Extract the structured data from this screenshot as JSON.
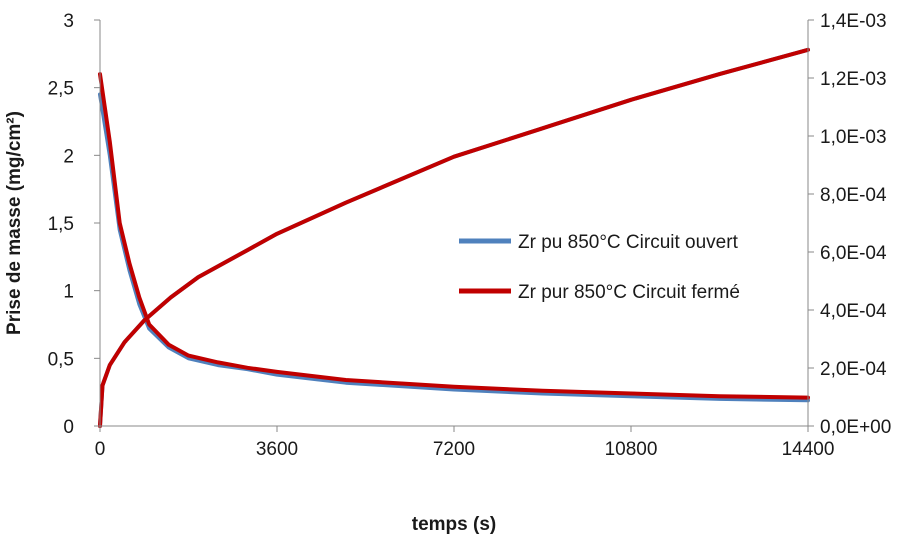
{
  "chart_data": {
    "type": "line",
    "title": "",
    "xlabel": "temps (s)",
    "ylabel": "Prise de masse (mg/cm²)",
    "y2label": "",
    "xlim": [
      0,
      14400
    ],
    "ylim": [
      0,
      3
    ],
    "y2lim": [
      0,
      0.0014
    ],
    "x_ticks": [
      0,
      3600,
      7200,
      10800,
      14400
    ],
    "x_tick_labels": [
      "0",
      "3600",
      "7200",
      "10800",
      "14400"
    ],
    "y_ticks": [
      0,
      0.5,
      1,
      1.5,
      2,
      2.5,
      3
    ],
    "y_tick_labels": [
      "0",
      "0,5",
      "1",
      "1,5",
      "2",
      "2,5",
      "3"
    ],
    "y2_ticks": [
      0,
      0.0002,
      0.0004,
      0.0006,
      0.0008,
      0.001,
      0.0012,
      0.0014
    ],
    "y2_tick_labels": [
      "0,0E+00",
      "2,0E-04",
      "4,0E-04",
      "6,0E-04",
      "8,0E-04",
      "1,0E-03",
      "1,2E-03",
      "1,4E-03"
    ],
    "grid": false,
    "legend_position": "right-middle",
    "series": [
      {
        "name": "Zr pu 850°C Circuit ouvert",
        "color": "#4f81bd",
        "axis": "left",
        "x": [
          0,
          200,
          400,
          600,
          800,
          1000,
          1400,
          1800,
          2400,
          3000,
          3600,
          5000,
          7200,
          9000,
          10800,
          12600,
          14400
        ],
        "y": [
          2.45,
          2.0,
          1.45,
          1.15,
          0.9,
          0.72,
          0.58,
          0.5,
          0.45,
          0.42,
          0.38,
          0.32,
          0.27,
          0.24,
          0.22,
          0.2,
          0.19
        ]
      },
      {
        "name": "Zr pur 850°C Circuit fermé",
        "color": "#c00000",
        "axis": "left",
        "x": [
          0,
          200,
          400,
          600,
          800,
          1000,
          1400,
          1800,
          2400,
          3000,
          3600,
          5000,
          7200,
          9000,
          10800,
          12600,
          14400
        ],
        "y": [
          2.6,
          2.1,
          1.5,
          1.2,
          0.95,
          0.75,
          0.6,
          0.52,
          0.47,
          0.43,
          0.4,
          0.34,
          0.29,
          0.26,
          0.24,
          0.22,
          0.21
        ]
      },
      {
        "name": "",
        "color": "#4f81bd",
        "axis": "left",
        "x": [
          0,
          50,
          200,
          500,
          900,
          1440,
          2000,
          3000,
          3600,
          5000,
          7200,
          9000,
          10800,
          12600,
          14400
        ],
        "y": [
          0,
          0.3,
          0.45,
          0.62,
          0.78,
          0.95,
          1.1,
          1.3,
          1.42,
          1.65,
          1.99,
          2.2,
          2.41,
          2.6,
          2.78
        ]
      },
      {
        "name": "",
        "color": "#c00000",
        "axis": "left",
        "x": [
          0,
          50,
          200,
          500,
          900,
          1440,
          2000,
          3000,
          3600,
          5000,
          7200,
          9000,
          10800,
          12600,
          14400
        ],
        "y": [
          0,
          0.3,
          0.45,
          0.62,
          0.78,
          0.95,
          1.1,
          1.3,
          1.42,
          1.65,
          1.99,
          2.2,
          2.41,
          2.6,
          2.78
        ]
      }
    ]
  }
}
